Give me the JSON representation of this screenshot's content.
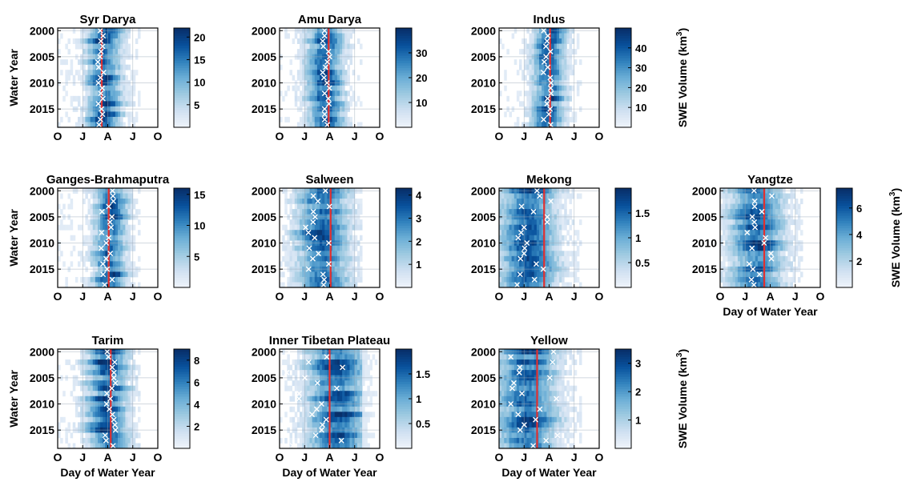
{
  "chart_data": {
    "type": "heatmap",
    "x_ticks": [
      "O",
      "J",
      "A",
      "J",
      "O"
    ],
    "y_ticks": [
      "2000",
      "2005",
      "2010",
      "2015"
    ],
    "y_range": [
      2000,
      2018
    ],
    "xlabel": "Day of Water Year",
    "ylabel": "Water Year",
    "colorbar_label": "SWE Volume (km",
    "colorbar_label_sup": "3",
    "colorbar_label_end": ")",
    "colormap": [
      "#eef3fa",
      "#cfe0f1",
      "#9ecae1",
      "#6baed6",
      "#3182bd",
      "#08519c",
      "#08306b"
    ],
    "vline_color": "#e03030",
    "marker_color": "#ffffff",
    "panels": [
      {
        "name": "Syr Darya",
        "cb_ticks": [
          5,
          10,
          15,
          20
        ],
        "cb_max": 22,
        "vline": 0.44,
        "peak": 0.47,
        "spread": 0.16,
        "markers": [
          0.4,
          0.46
        ]
      },
      {
        "name": "Amu Darya",
        "cb_ticks": [
          10,
          20,
          30
        ],
        "cb_max": 40,
        "vline": 0.49,
        "peak": 0.46,
        "spread": 0.17,
        "markers": [
          0.43,
          0.51
        ]
      },
      {
        "name": "Indus",
        "cb_ticks": [
          10,
          20,
          30,
          40
        ],
        "cb_max": 50,
        "vline": 0.51,
        "peak": 0.5,
        "spread": 0.15,
        "markers": [
          0.44,
          0.52
        ]
      },
      {
        "name": "Ganges-Brahmaputra",
        "cb_ticks": [
          5,
          10,
          15
        ],
        "cb_max": 16,
        "vline": 0.51,
        "peak": 0.52,
        "spread": 0.15,
        "markers": [
          0.43,
          0.56
        ]
      },
      {
        "name": "Salween",
        "cb_ticks": [
          1,
          2,
          3,
          4
        ],
        "cb_max": 4.3,
        "vline": 0.51,
        "peak": 0.42,
        "spread": 0.24,
        "markers": [
          0.26,
          0.53
        ]
      },
      {
        "name": "Mekong",
        "cb_ticks": [
          0.5,
          1,
          1.5
        ],
        "cb_max": 2.0,
        "vline": 0.45,
        "peak": 0.3,
        "spread": 0.26,
        "markers": [
          0.17,
          0.54
        ]
      },
      {
        "name": "Yangtze",
        "cb_ticks": [
          2,
          4,
          6
        ],
        "cb_max": 7.5,
        "vline": 0.44,
        "peak": 0.36,
        "spread": 0.25,
        "markers": [
          0.22,
          0.52
        ]
      },
      {
        "name": "Tarim",
        "cb_ticks": [
          2,
          4,
          6,
          8
        ],
        "cb_max": 9,
        "vline": 0.53,
        "peak": 0.5,
        "spread": 0.19,
        "markers": [
          0.47,
          0.58
        ]
      },
      {
        "name": "Inner Tibetan Plateau",
        "cb_ticks": [
          0.5,
          1,
          1.5
        ],
        "cb_max": 2.0,
        "vline": 0.5,
        "peak": 0.58,
        "spread": 0.28,
        "markers": [
          0.06,
          0.66
        ]
      },
      {
        "name": "Yellow",
        "cb_ticks": [
          1,
          2,
          3
        ],
        "cb_max": 3.5,
        "vline": 0.38,
        "peak": 0.28,
        "spread": 0.28,
        "markers": [
          0.1,
          0.6
        ]
      }
    ]
  }
}
